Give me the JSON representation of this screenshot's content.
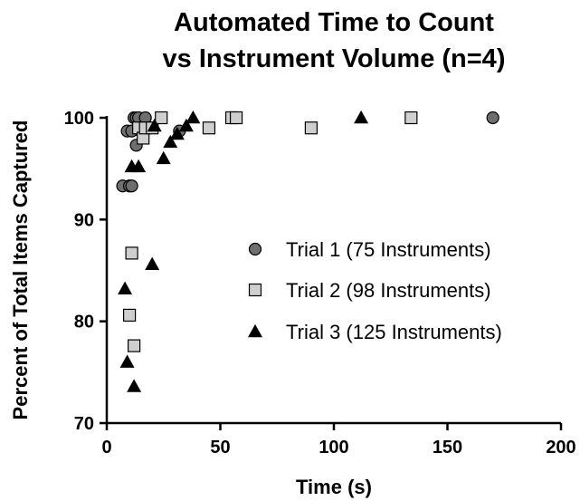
{
  "chart_data": {
    "type": "scatter",
    "title": [
      "Automated Time to Count",
      "vs Instrument Volume (n=4)"
    ],
    "xlabel": "Time (s)",
    "ylabel": "Percent of Total Items Captured",
    "xlim": [
      0,
      200
    ],
    "ylim": [
      70,
      100
    ],
    "xticks": [
      0,
      50,
      100,
      150,
      200
    ],
    "yticks": [
      70,
      80,
      90,
      100
    ],
    "grid": false,
    "legend_position": "right-center",
    "series": [
      {
        "name": "Trial 1 (75 Instruments)",
        "marker": "circle",
        "color": "#6e6e6e",
        "points": [
          {
            "x": 7,
            "y": 93.3
          },
          {
            "x": 10,
            "y": 93.3
          },
          {
            "x": 11,
            "y": 93.3
          },
          {
            "x": 9,
            "y": 98.7
          },
          {
            "x": 11,
            "y": 98.7
          },
          {
            "x": 12,
            "y": 100
          },
          {
            "x": 13,
            "y": 100
          },
          {
            "x": 14,
            "y": 100
          },
          {
            "x": 17,
            "y": 100
          },
          {
            "x": 13,
            "y": 97.3
          },
          {
            "x": 15,
            "y": 98.7
          },
          {
            "x": 32,
            "y": 98.7
          },
          {
            "x": 170,
            "y": 100
          }
        ]
      },
      {
        "name": "Trial 2 (98 Instruments)",
        "marker": "square",
        "color": "#cfcfcf",
        "points": [
          {
            "x": 10,
            "y": 80.6
          },
          {
            "x": 11,
            "y": 86.7
          },
          {
            "x": 12,
            "y": 77.6
          },
          {
            "x": 14,
            "y": 99
          },
          {
            "x": 16,
            "y": 98
          },
          {
            "x": 17,
            "y": 99
          },
          {
            "x": 20,
            "y": 99
          },
          {
            "x": 24,
            "y": 100
          },
          {
            "x": 45,
            "y": 99
          },
          {
            "x": 55,
            "y": 100
          },
          {
            "x": 57,
            "y": 100
          },
          {
            "x": 90,
            "y": 99
          },
          {
            "x": 134,
            "y": 100
          }
        ]
      },
      {
        "name": "Trial 3 (125 Instruments)",
        "marker": "triangle",
        "color": "#000000",
        "points": [
          {
            "x": 8,
            "y": 83.2
          },
          {
            "x": 9,
            "y": 76
          },
          {
            "x": 12,
            "y": 73.6
          },
          {
            "x": 11,
            "y": 95.2
          },
          {
            "x": 14,
            "y": 95.2
          },
          {
            "x": 20,
            "y": 85.6
          },
          {
            "x": 21,
            "y": 99.2
          },
          {
            "x": 25,
            "y": 96
          },
          {
            "x": 28,
            "y": 97.6
          },
          {
            "x": 31,
            "y": 98.4
          },
          {
            "x": 35,
            "y": 99.2
          },
          {
            "x": 38,
            "y": 100
          },
          {
            "x": 112,
            "y": 100
          }
        ]
      }
    ]
  }
}
